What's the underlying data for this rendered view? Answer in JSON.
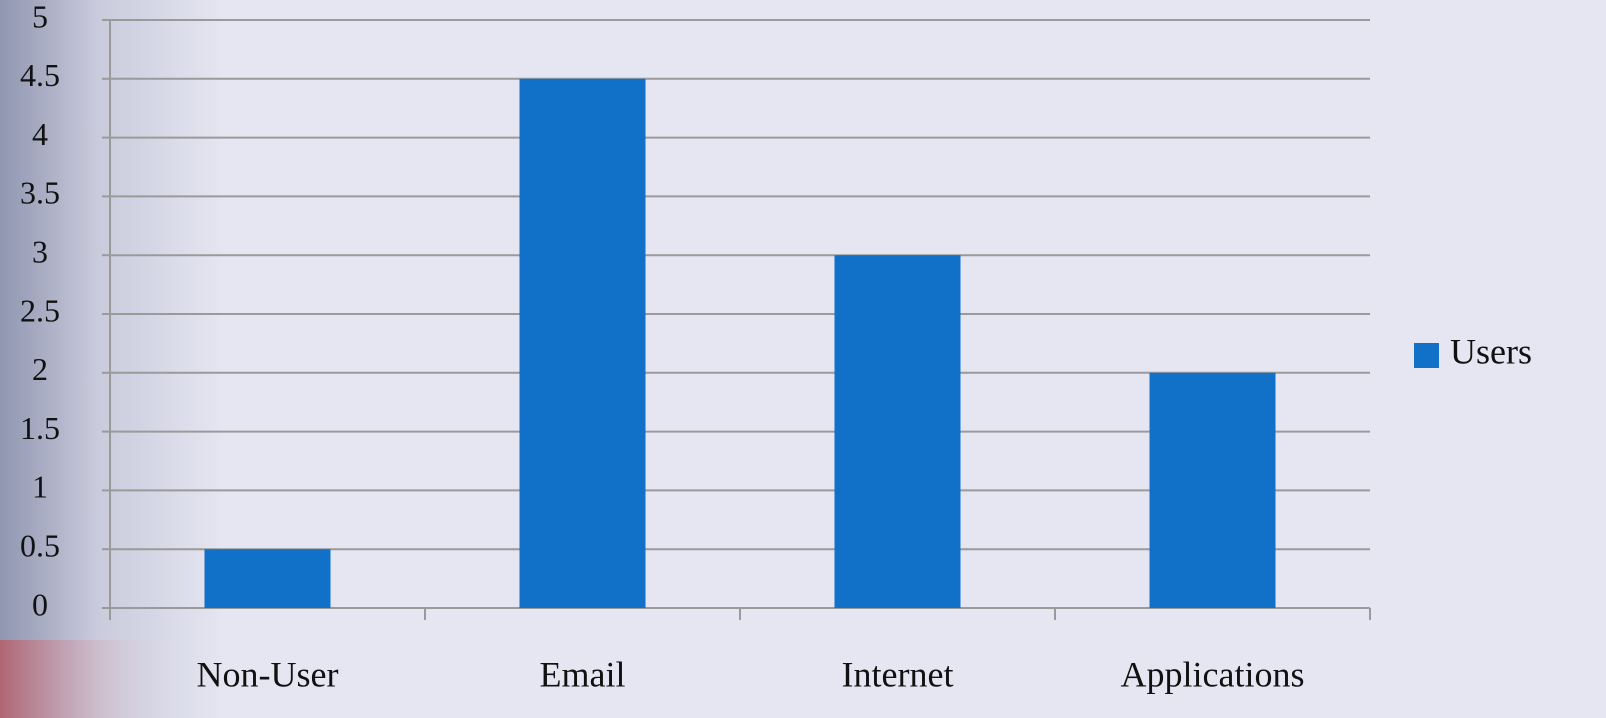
{
  "chart_data": {
    "type": "bar",
    "categories": [
      "Non-User",
      "Email",
      "Internet",
      "Applications"
    ],
    "series": [
      {
        "name": "Users",
        "color": "#1170c8",
        "values": [
          0.5,
          4.5,
          3,
          2
        ]
      }
    ],
    "ylim": [
      0,
      5
    ],
    "yticks": [
      0,
      0.5,
      1,
      1.5,
      2,
      2.5,
      3,
      3.5,
      4,
      4.5,
      5
    ],
    "grid": true,
    "legend": "right"
  }
}
